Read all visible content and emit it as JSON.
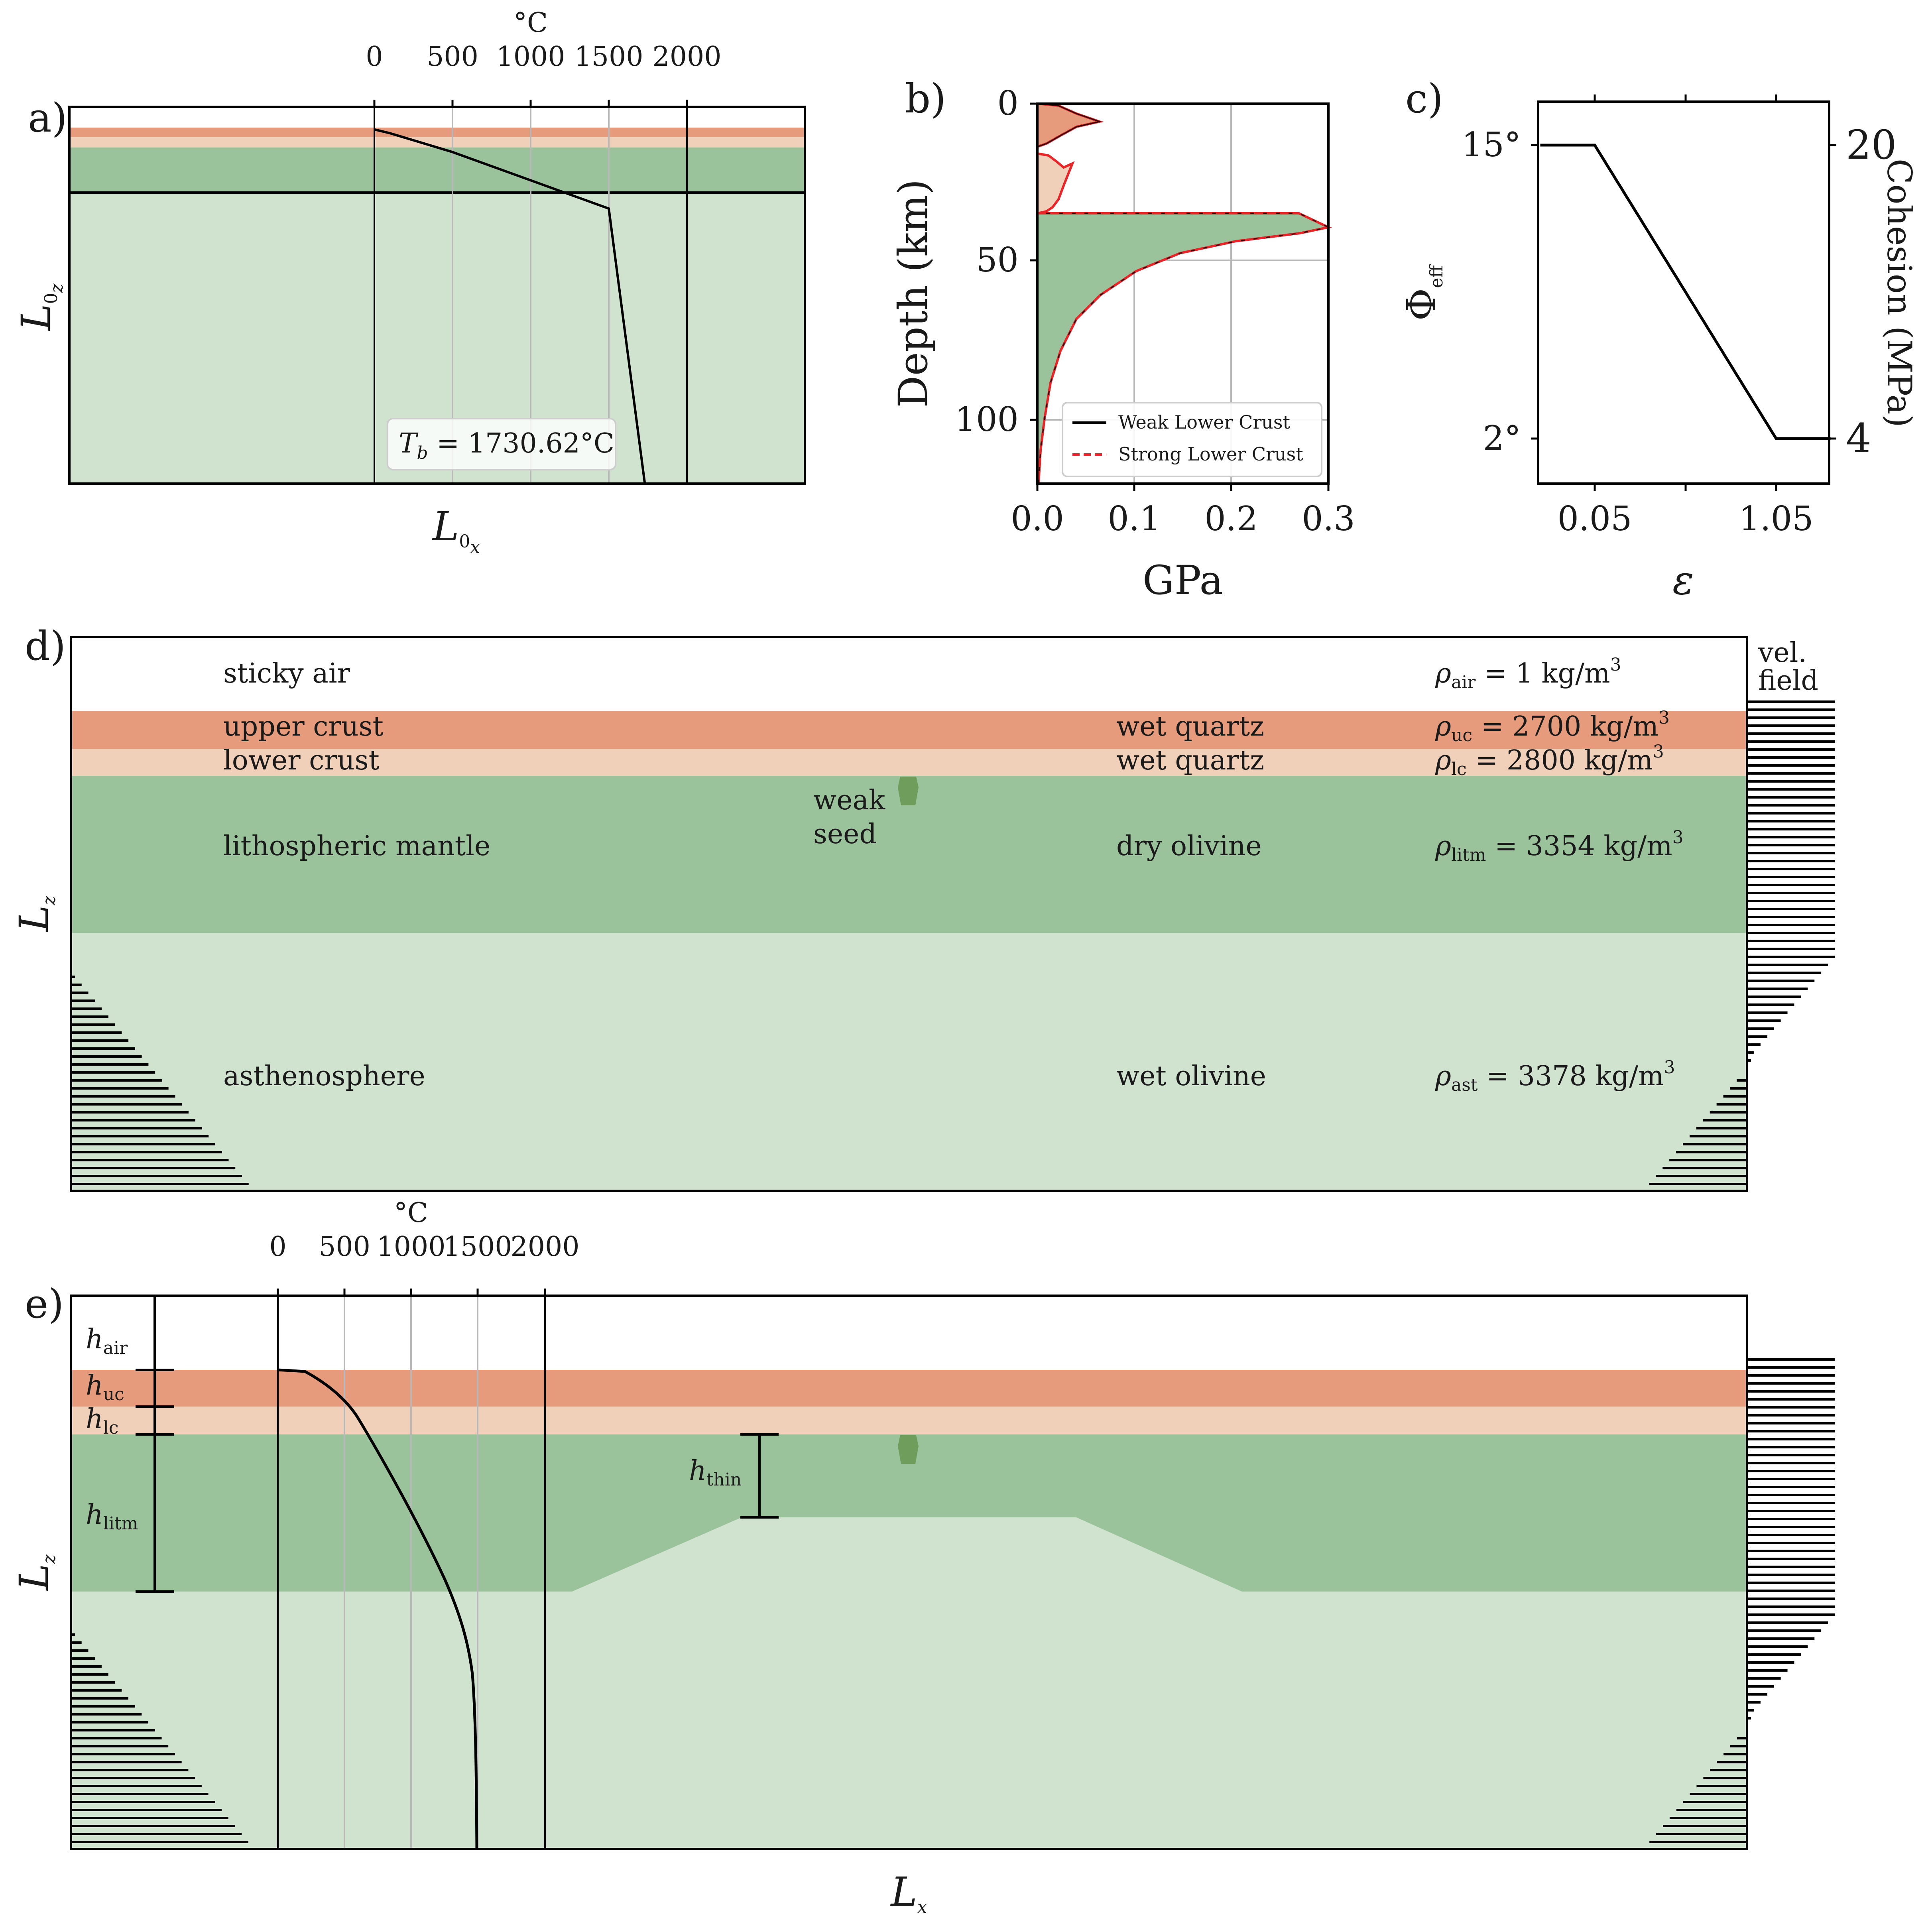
{
  "colors": {
    "upper_crust": "#e69c7c",
    "lower_crust": "#f0d0b9",
    "lithospheric_mantle": "#9bc39b",
    "asthenosphere": "#d0e3cf",
    "weak_seed": "#6f9e5c",
    "strong_curve": "#e8262a",
    "weak_curve": "#000000",
    "grid": "#b8b8b8"
  },
  "panel_a": {
    "label": "a)",
    "unit": "°C",
    "ticks": [
      "0",
      "500",
      "1000",
      "1500",
      "2000"
    ],
    "ylabel_main": "L",
    "ylabel_sub1": "0",
    "ylabel_sub2": "z",
    "xlabel_main": "L",
    "xlabel_sub1": "0",
    "xlabel_sub2": "x",
    "tb_text": "T",
    "tb_sub": "b",
    "tb_value": " = 1730.62°C",
    "geotherm": [
      [
        0,
        0.06
      ],
      [
        100,
        0.07
      ],
      [
        500,
        0.12
      ],
      [
        1300,
        0.24
      ],
      [
        1500,
        0.27
      ],
      [
        1730.62,
        1.0
      ]
    ]
  },
  "panel_b": {
    "label": "b)",
    "ylabel": "Depth (km)",
    "xlabel": "GPa",
    "yticks": [
      "0",
      "50",
      "100"
    ],
    "xticks": [
      "0.0",
      "0.1",
      "0.2",
      "0.3"
    ],
    "legend": [
      {
        "label": "Weak Lower Crust",
        "style": "solid"
      },
      {
        "label": "Strong Lower Crust",
        "style": "dashed"
      }
    ]
  },
  "panel_c": {
    "label": "c)",
    "ylabel_left": "Φ",
    "ylabel_left_sub": "eff",
    "ylabel_right": "Cohesion (MPa)",
    "xlabel": "ε",
    "left_ticks": [
      "15°",
      "2°"
    ],
    "right_ticks": [
      "20",
      "4"
    ],
    "xticks": [
      "0.05",
      "1.05"
    ],
    "curve": [
      [
        -0.25,
        15
      ],
      [
        0.05,
        15
      ],
      [
        1.05,
        2
      ],
      [
        1.35,
        2
      ]
    ]
  },
  "panel_d": {
    "label": "d)",
    "ylabel_main": "L",
    "ylabel_sub": "z",
    "vel_label_1": "vel.",
    "vel_label_2": "field",
    "weak_seed_1": "weak",
    "weak_seed_2": "seed",
    "layers": [
      {
        "name": "sticky air",
        "material": "",
        "rho": "ρ",
        "rho_sub": "air",
        "rho_val": " = 1 kg/m",
        "rho_exp": "3"
      },
      {
        "name": "upper crust",
        "material": "wet quartz",
        "rho": "ρ",
        "rho_sub": "uc",
        "rho_val": " = 2700 kg/m",
        "rho_exp": "3"
      },
      {
        "name": "lower crust",
        "material": "wet quartz",
        "rho": "ρ",
        "rho_sub": "lc",
        "rho_val": " = 2800 kg/m",
        "rho_exp": "3"
      },
      {
        "name": "lithospheric mantle",
        "material": "dry olivine",
        "rho": "ρ",
        "rho_sub": "litm",
        "rho_val": " = 3354 kg/m",
        "rho_exp": "3"
      },
      {
        "name": "asthenosphere",
        "material": "wet olivine",
        "rho": "ρ",
        "rho_sub": "ast",
        "rho_val": " = 3378 kg/m",
        "rho_exp": "3"
      }
    ]
  },
  "panel_e": {
    "label": "e)",
    "unit": "°C",
    "ticks": [
      "0",
      "500",
      "1000",
      "1500",
      "2000"
    ],
    "ylabel_main": "L",
    "ylabel_sub": "z",
    "xlabel_main": "L",
    "xlabel_sub": "x",
    "h_labels": [
      {
        "main": "h",
        "sub": "air"
      },
      {
        "main": "h",
        "sub": "uc"
      },
      {
        "main": "h",
        "sub": "lc"
      },
      {
        "main": "h",
        "sub": "litm"
      },
      {
        "main": "h",
        "sub": "thin"
      }
    ]
  }
}
